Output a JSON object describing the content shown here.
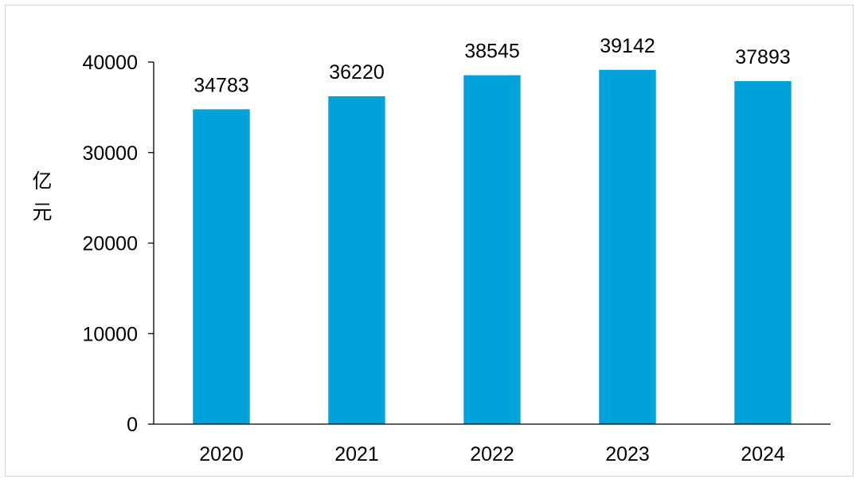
{
  "chart_data": {
    "type": "bar",
    "title": "",
    "xlabel": "",
    "ylabel": "亿元",
    "categories": [
      "2020",
      "2021",
      "2022",
      "2023",
      "2024"
    ],
    "values": [
      34783,
      36220,
      38545,
      39142,
      37893
    ],
    "data_labels": [
      "34783",
      "36220",
      "38545",
      "39142",
      "37893"
    ],
    "ylim": [
      0,
      40000
    ],
    "yticks": [
      0,
      10000,
      20000,
      30000,
      40000
    ],
    "ytick_labels": [
      "0",
      "10000",
      "20000",
      "30000",
      "40000"
    ],
    "grid": false,
    "legend": "none",
    "bar_color": "#00A2DC",
    "axis_color": "#000000",
    "border_color": "#d4d4d4"
  }
}
